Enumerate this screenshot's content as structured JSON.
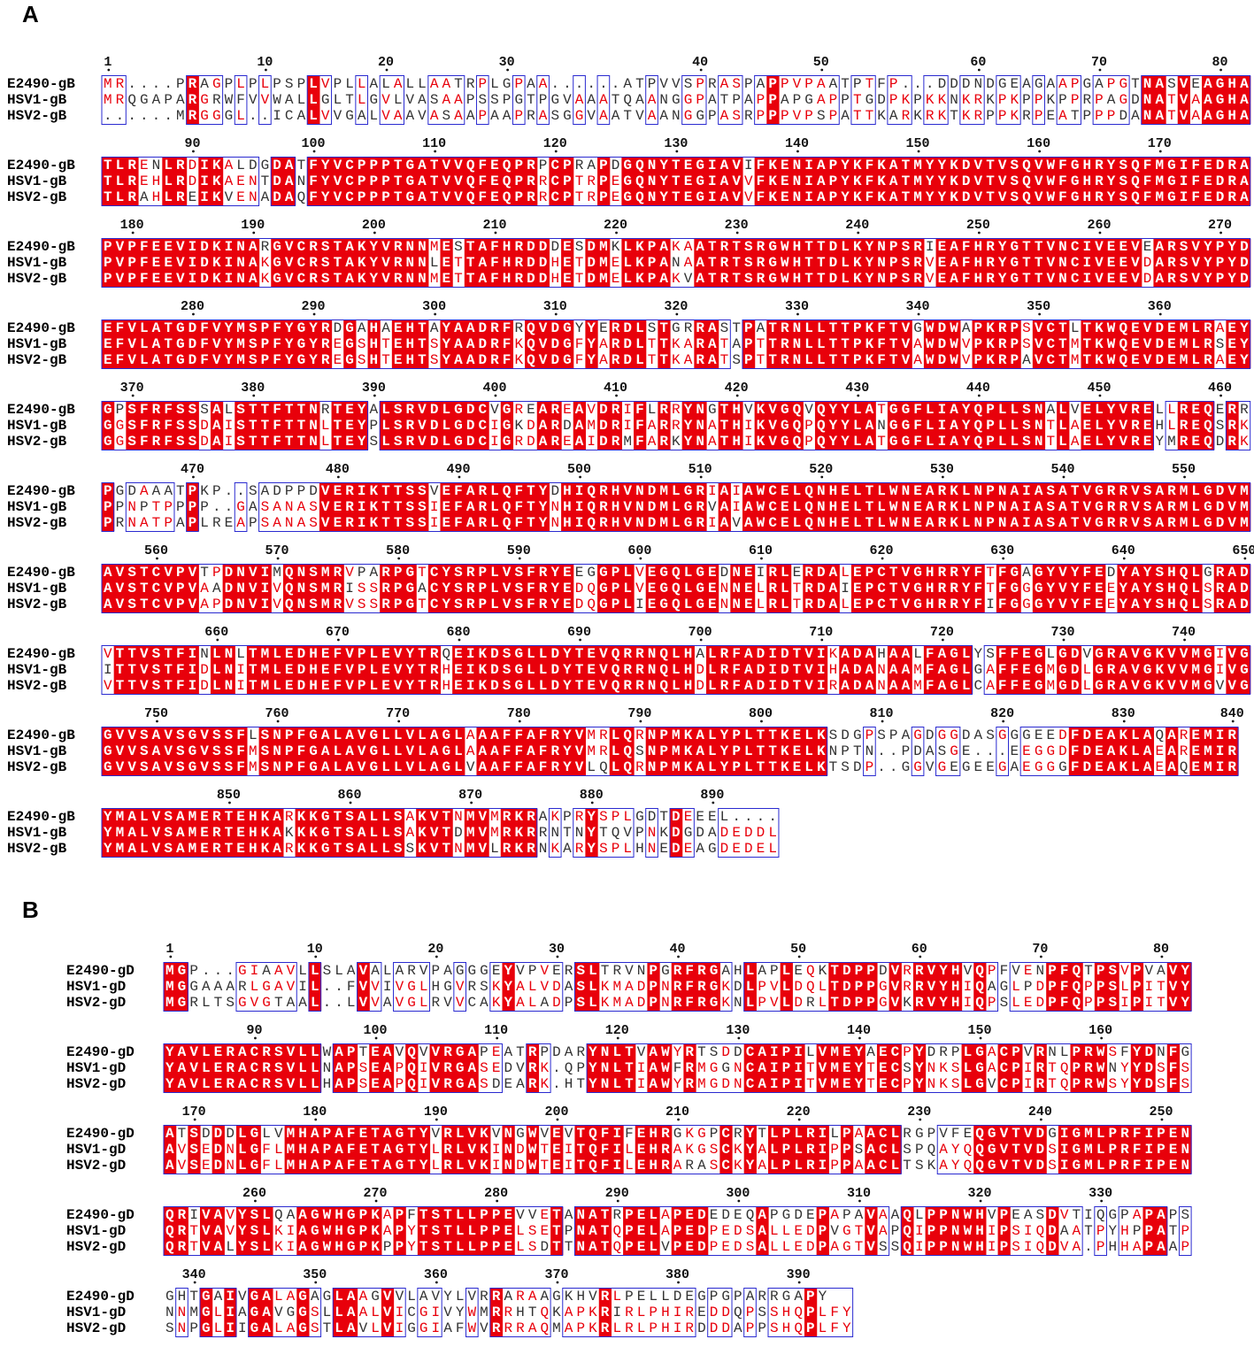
{
  "panels": [
    {
      "label": "A",
      "blocks": [
        {
          "ruler": [
            1,
            10,
            20,
            30,
            40,
            50,
            60,
            70,
            80
          ],
          "rows": [
            {
              "name": "E2490-gB",
              "seq": "MR....PRAGPLPLPSPLVPLLALALLAATRPLGPAA......ATPVVSPRASPAPPVPAATPTFP...DDDNDGEAGAAPGAPGTNASVEAGHA"
            },
            {
              "name": "HSV1-gB",
              "seq": "MRQGAPARGRWFVVWALLGLTLGVLVASAAPSSPGTPGVAAATQAANGGPATPAPPAPGAPPTGDPKPKKNKRKPKPPKPPRPAGDNATVAAGHA"
            },
            {
              "name": "HSV2-gB",
              "seq": "......MRGGGL..ICALVVGALVAAVASAAPAAPRASGGVAATVAANGGPASRPPPVPSPATTKARKRKTKRPPKRPEATPPPDANATVAAGHA"
            }
          ]
        },
        {
          "ruler": [
            90,
            100,
            110,
            120,
            130,
            140,
            150,
            160,
            170
          ],
          "rows": [
            {
              "name": "E2490-gB",
              "seq": "TLRENLRDIKALDGDATFYVCPPPTGATVVQFEQPRPCPRAPDGQNYTEGIAVIFKENIAPYKFKATMYYKDVTVSQVWFGHRYSQFMGIFEDRA"
            },
            {
              "name": "HSV1-gB",
              "seq": "TLREHLRDIKAENTDANFYVCPPPTGATVVQFEQPRRCPTRPEGQNYTEGIAVVFKENIAPYKFKATMYYKDVTVSQVWFGHRYSQFMGIFEDRA"
            },
            {
              "name": "HSV2-gB",
              "seq": "TLRAHLREIKVENADAQFYVCPPPTGATVVQFEQPRRCPTRPEGQNYTEGIAVVFKENIAPYKFKATMYYKDVTVSQVWFGHRYSQFMGIFEDRA"
            }
          ]
        },
        {
          "ruler": [
            180,
            190,
            200,
            210,
            220,
            230,
            240,
            250,
            260,
            270
          ],
          "rows": [
            {
              "name": "E2490-gB",
              "seq": "PVPFEEVIDKINARGVCRSTAKYVRNNMESTAFHRDDDESDMKLKPAKAATRTSRGWHTTDLKYNPSRIEAFHRYGTTVNCIVEEVEARSVYPYD"
            },
            {
              "name": "HSV1-gB",
              "seq": "PVPFEEVIDKINAKGVCRSTAKYVRNNLETTAFHRDDHETDMELKPANAATRTSRGWHTTDLKYNPSRVEAFHRYGTTVNCIVEEVDARSVYPYD"
            },
            {
              "name": "HSV2-gB",
              "seq": "PVPFEEVIDKINAKGVCRSTAKYVRNNMETTAFHRDDHETDMELKPAKVATRTSRGWHTTDLKYNPSRVEAFHRYGTTVNCIVEEVDARSVYPYD"
            }
          ]
        },
        {
          "ruler": [
            280,
            290,
            300,
            310,
            320,
            330,
            340,
            350,
            360
          ],
          "rows": [
            {
              "name": "E2490-gB",
              "seq": "EFVLATGDFVYMSPFYGYRDGAHAEHTAYAADRFRQVDGYYERDLSTGRRASTPATRNLLTTPKFTVGWDWAPKRPSVCTLTKWQEVDEMLRAEY"
            },
            {
              "name": "HSV1-gB",
              "seq": "EFVLATGDFVYMSPFYGYREGSHTEHTSYAADRFKQVDGFYARDLTTKARATAPTTRNLLTTPKFTVAWDWVPKRPSVCTMTKWQEVDEMLRSEY"
            },
            {
              "name": "HSV2-gB",
              "seq": "EFVLATGDFVYMSPFYGYREGSHTEHTSYAADRFKQVDGFYARDLTTKARATSPTTRNLLTTPKFTVAWDWVPKRPAVCTMTKWQEVDEMLRAEY"
            }
          ]
        },
        {
          "ruler": [
            370,
            380,
            390,
            400,
            410,
            420,
            430,
            440,
            450,
            460
          ],
          "rows": [
            {
              "name": "E2490-gB",
              "seq": "GPSFRFSSSALSTTFTTNRTEYALSRVDLGDCVGREAREAVDRIFLRRYNGTHVKVGQVQYYLATGGFLIAYQPLLSNALVELYVRELLREQERR"
            },
            {
              "name": "HSV1-gB",
              "seq": "GGSFRFSSDAISTTFTTNLTEYPLSRVDLGDCIGKDARDAMDRIFARRYNATHIKVGQPQYYLANGGFLIAYQPLLSNTLAELYVREHLREQSRK"
            },
            {
              "name": "HSV2-gB",
              "seq": "GGSFRFSSDAISTTFTTNLTEYSLSRVDLGDCIGRDAREAIDRMFARKYNATHIKVGQPQYYLATGGFLIAYQPLLSNTLAELYVREYMREQDRK"
            }
          ]
        },
        {
          "ruler": [
            470,
            480,
            490,
            500,
            510,
            520,
            530,
            540,
            550
          ],
          "rows": [
            {
              "name": "E2490-gB",
              "seq": "PGDAAATPKP..SADPPDVERIKTTSSVEFARLQFTYDHIQRHVNDMLGRIAIAWCELQNHELTLWNEARKLNPNAIASATVGRRVSARMLGDVM"
            },
            {
              "name": "HSV1-gB",
              "seq": "PPNPTPPPP..GASANASVERIKTTSSIEFARLQFTYNHIQRHVNDMLGRVAIAWCELQNHELTLWNEARKLNPNAIASATVGRRVSARMLGDVM"
            },
            {
              "name": "HSV2-gB",
              "seq": "PRNATPAPLREAPSANASVERIKTTSSIEFARLQFTYNHIQRHVNDMLGRIAVAWCELQNHELTLWNEARKLNPNAIASATVGRRVSARMLGDVM"
            }
          ]
        },
        {
          "ruler": [
            560,
            570,
            580,
            590,
            600,
            610,
            620,
            630,
            640,
            650
          ],
          "rows": [
            {
              "name": "E2490-gB",
              "seq": "AVSTCVPVTPDNVIMQNSMRVPARPGTCYSRPLVSFRYEEGGPLVEGQLGEDNEIRLERDALEPCTVGHRRYFTFGAGYVYFEDYAYSHQLGRAD"
            },
            {
              "name": "HSV1-gB",
              "seq": "AVSTCVPVAADNVIVQNSMRISSRPGACYSRPLVSFRYEDQGPLVEGQLGENNELRLTRDAIEPCTVGHRRYFTFGGGYVYFEEYAYSHQLSRAD"
            },
            {
              "name": "HSV2-gB",
              "seq": "AVSTCVPVAPDNVIVQNSMRVSSRPGTCYSRPLVSFRYEDQGPLIEGQLGENNELRLTRDALEPCTVGHRRYFIFGGGYVYFEEYAYSHQLSRAD"
            }
          ]
        },
        {
          "ruler": [
            660,
            670,
            680,
            690,
            700,
            710,
            720,
            730,
            740
          ],
          "rows": [
            {
              "name": "E2490-gB",
              "seq": "VTTVSTFINLNLTMLEDHEFVPLEVYTRQEIKDSGLLDYTEVQRRNQLHALRFADIDTVIKADAHAALFAGLYSFFEGLGDVGRAVGKVVMGIVG"
            },
            {
              "name": "HSV1-gB",
              "seq": "ITTVSTFIDLNITMLEDHEFVPLEVYTRHEIKDSGLLDYTEVQRRNQLHDLRFADIDTVIHADANAAMFAGLGAFFEGMGDLGRAVGKVVMGIVG"
            },
            {
              "name": "HSV2-gB",
              "seq": "VTTVSTFIDLNITMLEDHEFVPLEVYTRHEIKDSGLLDYTEVQRRNQLHDLRFADIDTVIRADANAAMFAGLCAFFEGMGDLGRAVGKVVMGVVG"
            }
          ]
        },
        {
          "ruler": [
            750,
            760,
            770,
            780,
            790,
            800,
            810,
            820,
            830,
            840
          ],
          "rows": [
            {
              "name": "E2490-gB",
              "seq": "GVVSAVSGVSSFLSNPFGALAVGLLVLAGLAAAFFAFRYVMRLQRNPMKALYPLTTKELKSDGPSPAGDGGDASGGGEEDFDEAKLAQAREMIR"
            },
            {
              "name": "HSV1-gB",
              "seq": "GVVSAVSGVSSFMSNPFGALAVGLLVLAGLAAAFFAFRYVMRLQSNPMKALYPLTTKELKNPTN..PDASGE...EEGGDFDEAKLAEAREMIR"
            },
            {
              "name": "HSV2-gB",
              "seq": "GVVSAVSGVSSFMSNPFGALAVGLLVLAGLVAAFFAFRYVLQLQRNPMKALYPLTTKELKTSDP..GGVGEGEEGAEGGGFDEAKLAEAQEMIR"
            }
          ]
        },
        {
          "ruler": [
            850,
            860,
            870,
            880,
            890
          ],
          "rows": [
            {
              "name": "E2490-gB",
              "seq": "YMALVSAMERTEHKARKKGTSALLSAKVTNMVMRKRAKPRYSPLGDTDEEEL...."
            },
            {
              "name": "HSV1-gB",
              "seq": "YMALVSAMERTEHKAKKKGTSALLSAKVTDMVMRKRRNTNYTQVPNKDGDADEDDL"
            },
            {
              "name": "HSV2-gB",
              "seq": "YMALVSAMERTEHKARKKGTSALLSSKVTNMVLRKRNKARYSPLHNEDEAGDEDEL"
            }
          ]
        }
      ]
    },
    {
      "label": "B",
      "blocks": [
        {
          "ruler": [
            1,
            10,
            20,
            30,
            40,
            50,
            60,
            70,
            80
          ],
          "rows": [
            {
              "name": "E2490-gD",
              "seq": "MGP...GIAAVLLSLAVALARVPAGGGEYVPVERSLTRVNPGRFRGAHLAPLEQKTDPPDVRRVYHVQPFVENPFQTPSVPVAVY"
            },
            {
              "name": "HSV1-gD",
              "seq": "MGGAAARLGAVIL..FVVIVGLHGVRSKYALVDASLKMADPNRFRGKDLPVLDQLTDPPGVRRVYHIQAGLPDPFQPPSLPITVY"
            },
            {
              "name": "HSV2-gD",
              "seq": "MGRLTSGVGTAAL..LVVAVGLRVVCAKYALADPSLKMADPNRFRGKNLPVLDRLTDPPGVKRVYHIQPSLEDPFQPPSIPITVY"
            }
          ]
        },
        {
          "ruler": [
            90,
            100,
            110,
            120,
            130,
            140,
            150,
            160
          ],
          "rows": [
            {
              "name": "E2490-gD",
              "seq": "YAVLERACRSVLLWAPTEAVQVVRGAPEATRPDARYNLTVAWYRTSDDCAIPILVMEYAECPYDRPLGACPVRNLPRWSFYDNFG"
            },
            {
              "name": "HSV1-gD",
              "seq": "YAVLERACRSVLLNAPSEAPQIVRGASEDVRK.QPYNLTIAWFRMGGNCAIPITVMEYTECSYNKSLGACPIRTQPRWNYYDSFS"
            },
            {
              "name": "HSV2-gD",
              "seq": "YAVLERACRSVLLHAPSEAPQIVRGASDEARK.HTYNLTIAWYRMGDNCAIPITVMEYTECPYNKSLGVCPIRTQPRWSYYDSFS"
            }
          ]
        },
        {
          "ruler": [
            170,
            180,
            190,
            200,
            210,
            220,
            230,
            240,
            250
          ],
          "rows": [
            {
              "name": "E2490-gD",
              "seq": "ATSDDDLGLVMHAPAFETAGTYVRLVKVNGWVEVTQFIFEHRGKGPCRYTLPLRILPAACLRGPVFEQGVTVDGIGMLPRFIPEN"
            },
            {
              "name": "HSV1-gD",
              "seq": "AVSEDNLGFLMHAPAFETAGTYLRLVKINDWTEITQFILEHRAKGSCKYALPLRIPPSACLSPQAYQQGVTVDSIGMLPRFIPEN"
            },
            {
              "name": "HSV2-gD",
              "seq": "AVSEDNLGFLMHAPAFETAGTYLRLVKINDWTEITQFILEHRARASCKYALPLRIPPAACLTSKAYQQGVTVDSIGMLPRFIPEN"
            }
          ]
        },
        {
          "ruler": [
            260,
            270,
            280,
            290,
            300,
            310,
            320,
            330
          ],
          "rows": [
            {
              "name": "E2490-gD",
              "seq": "QRIVAVYSLQAAGWHGPKAPFTSTLLPPEVVETANATRPELAPEDEDEQAPGDEPAPAVAAQLPPNWHVPEASDVTIQGPAPAPS"
            },
            {
              "name": "HSV1-gD",
              "seq": "QRTVAVYSLKIAGWHGPKAPYTSTLLPPELSETPNATQPELAPEDPEDSALLEDPVGTVAPQIPPNWHIPSIQDAATPYHPPATP"
            },
            {
              "name": "HSV2-gD",
              "seq": "QRTVALYSLKIAGWHGPKPPYTSTLLPPELSDTTNATQPELVPEDPEDSALLEDPAGTVSSQIPPNWHIPSIQDVA.PHHAPAAP"
            }
          ]
        },
        {
          "ruler": [
            340,
            350,
            360,
            370,
            380,
            390
          ],
          "rows": [
            {
              "name": "E2490-gD",
              "seq": "GHTGAIVGALAGAGLAAGVVLAVYLVRRARAAGKHVRLPELLDEGPGPARRGAPY"
            },
            {
              "name": "HSV1-gD",
              "seq": "NNMGLIAGAVGGSLLAALVICGIVYWMRRHTQKAPKRIRLPHIREDDQPSSHQPLFY"
            },
            {
              "name": "HSV2-gD",
              "seq": "SNPGLIIGALAGSTLAVLVIGGIAFWVRRRAQMAPKRLRLPHIRDDDAPPSHQPLFY"
            }
          ]
        }
      ]
    }
  ]
}
